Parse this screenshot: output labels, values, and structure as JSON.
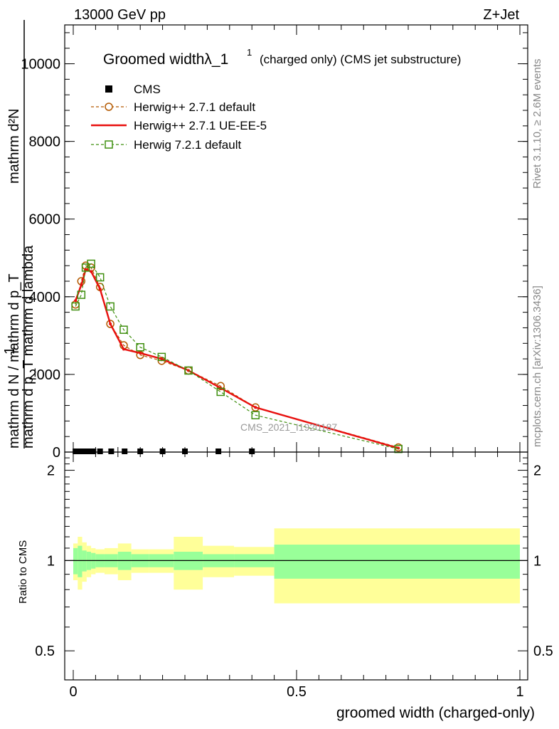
{
  "header": {
    "left": "13000 GeV pp",
    "right": "Z+Jet"
  },
  "side_text": {
    "rivet": "Rivet 3.1.10, ≥ 2.6M events",
    "mcplots": "mcplots.cern.ch [arXiv:1306.3436]"
  },
  "watermark": "CMS_2021_I1920187",
  "chart_data": [
    {
      "type": "line",
      "title": "Groomed widthλ_1",
      "title_sup": "1",
      "title_suffix": "(charged only) (CMS jet substructure)",
      "ylabel_top": "mathrm d²N",
      "ylabel_top2": "mathrm d p_T mathrm d lambda",
      "ylabel_frac_num": "1",
      "ylabel_bottom": "mathrm d N / mathrm d p_T",
      "xlim": [
        0,
        1
      ],
      "ylim": [
        0,
        11000
      ],
      "yticks": [
        0,
        2000,
        4000,
        6000,
        8000,
        10000
      ],
      "ytick_labels": [
        "0",
        "2000",
        "4000",
        "6000",
        "8000",
        "10000"
      ],
      "grid": false,
      "legend_position": "top-left",
      "series": [
        {
          "name": "CMS",
          "style": "marker-square",
          "color": "#000000",
          "x": [
            0.005,
            0.015,
            0.025,
            0.035,
            0.045,
            0.06,
            0.085,
            0.115,
            0.15,
            0.2,
            0.25,
            0.325,
            0.4
          ],
          "y": [
            0,
            0,
            0,
            0,
            0,
            0,
            0,
            0,
            0,
            0,
            0,
            0,
            0
          ]
        },
        {
          "name": "Herwig++ 2.7.1 default",
          "style": "dashed-circle",
          "color": "#b35900",
          "x": [
            0.005,
            0.018,
            0.028,
            0.04,
            0.06,
            0.083,
            0.113,
            0.15,
            0.198,
            0.258,
            0.33,
            0.408,
            0.728
          ],
          "y": [
            3800,
            4400,
            4800,
            4750,
            4250,
            3300,
            2750,
            2500,
            2350,
            2100,
            1700,
            1150,
            120
          ]
        },
        {
          "name": "Herwig++ 2.7.1 UE-EE-5",
          "style": "solid",
          "color": "#e8100e",
          "x": [
            0.005,
            0.018,
            0.028,
            0.04,
            0.06,
            0.083,
            0.113,
            0.15,
            0.198,
            0.258,
            0.33,
            0.408,
            0.728
          ],
          "y": [
            3900,
            4300,
            4700,
            4650,
            4200,
            3300,
            2650,
            2550,
            2400,
            2100,
            1650,
            1150,
            100
          ]
        },
        {
          "name": "Herwig 7.2.1 default",
          "style": "dashed-square",
          "color": "#3f8f0f",
          "x": [
            0.005,
            0.018,
            0.028,
            0.04,
            0.06,
            0.083,
            0.113,
            0.15,
            0.198,
            0.258,
            0.33,
            0.408,
            0.728
          ],
          "y": [
            3750,
            4050,
            4750,
            4850,
            4500,
            3750,
            3150,
            2700,
            2450,
            2100,
            1550,
            950,
            80
          ]
        }
      ]
    },
    {
      "type": "area",
      "ylabel": "Ratio to CMS",
      "xlabel": "groomed width (charged-only)",
      "xlim": [
        0,
        1
      ],
      "ylim": [
        0.4,
        2.3
      ],
      "yticks": [
        0.5,
        1,
        2
      ],
      "ytick_labels": [
        "0.5",
        "1",
        "2"
      ],
      "xticks": [
        0,
        0.5,
        1
      ],
      "xtick_labels": [
        "0",
        "0.5",
        "1"
      ],
      "reference_line": 1,
      "bands": {
        "edges": [
          0,
          0.01,
          0.02,
          0.03,
          0.04,
          0.05,
          0.07,
          0.1,
          0.13,
          0.17,
          0.225,
          0.29,
          0.36,
          0.45,
          1.0
        ],
        "inner_color": "#99ff99",
        "outer_color": "#ffff99",
        "inner": [
          0.1,
          0.12,
          0.08,
          0.07,
          0.06,
          0.05,
          0.05,
          0.07,
          0.05,
          0.05,
          0.07,
          0.05,
          0.05,
          0.13
        ],
        "outer": [
          0.14,
          0.2,
          0.15,
          0.12,
          0.1,
          0.09,
          0.1,
          0.14,
          0.09,
          0.09,
          0.2,
          0.12,
          0.11,
          0.28
        ]
      }
    }
  ]
}
